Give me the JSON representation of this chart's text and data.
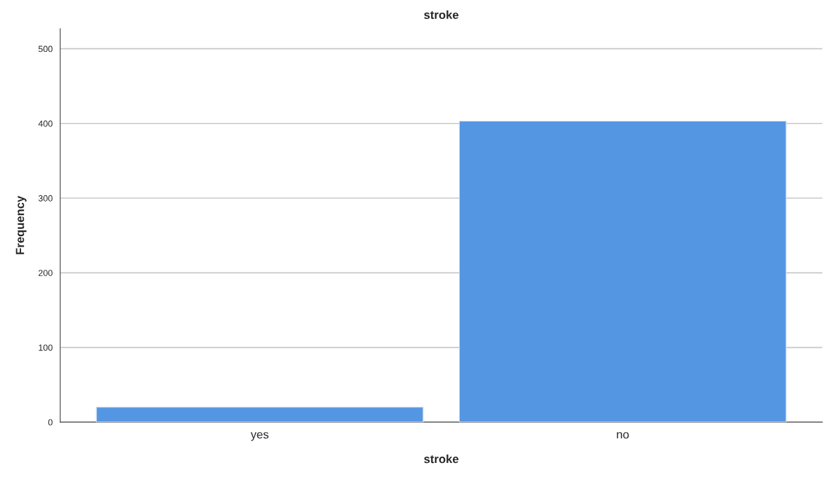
{
  "chart_data": {
    "type": "bar",
    "title": "stroke",
    "xlabel": "stroke",
    "ylabel": "Frequency",
    "categories": [
      "yes",
      "no"
    ],
    "values": [
      20,
      403
    ],
    "color": "#5596e3",
    "ylim": [
      0,
      527
    ],
    "yticks": [
      0,
      100,
      200,
      300,
      400,
      500
    ],
    "grid": "y",
    "legend": false
  }
}
